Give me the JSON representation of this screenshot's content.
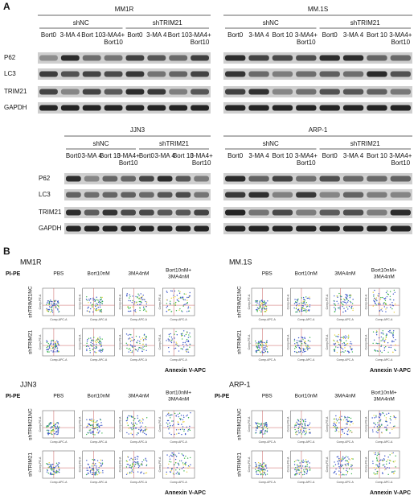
{
  "panel_a": {
    "label": "A",
    "blots": [
      {
        "title": "MM1R",
        "groups": [
          {
            "name": "shNC",
            "lanes": [
              [
                "Bort0"
              ],
              [
                "3-MA 4"
              ],
              [
                "Bort 10"
              ],
              [
                "3-MA4+",
                "Bort10"
              ]
            ]
          },
          {
            "name": "shTRIM21",
            "lanes": [
              [
                "Bort0"
              ],
              [
                "3-MA 4"
              ],
              [
                "Bort 10"
              ],
              [
                "3-MA4+",
                "Bort10"
              ]
            ]
          }
        ],
        "rows": [
          "P62",
          "LC3",
          "TRIM21",
          "GAPDH"
        ]
      },
      {
        "title": "MM.1S",
        "groups": [
          {
            "name": "shNC",
            "lanes": [
              [
                "Bort0"
              ],
              [
                "3-MA 4"
              ],
              [
                "Bort 10"
              ],
              [
                "3-MA4+",
                "Bort10"
              ]
            ]
          },
          {
            "name": "shTRIM21",
            "lanes": [
              [
                "Bort0"
              ],
              [
                "3-MA 4"
              ],
              [
                "Bort 10"
              ],
              [
                "3-MA4+",
                "Bort10"
              ]
            ]
          }
        ]
      },
      {
        "title": "JJN3",
        "groups": [
          {
            "name": "shNC",
            "lanes": [
              [
                "Bort0"
              ],
              [
                "3-MA 4"
              ],
              [
                "Bort 10"
              ],
              [
                "3-MA4+",
                "Bort10"
              ]
            ]
          },
          {
            "name": "shTRIM21",
            "lanes": [
              [
                "Bort0"
              ],
              [
                "3-MA 4"
              ],
              [
                "Bort 10"
              ],
              [
                "3-MA4+",
                "Bort10"
              ]
            ]
          }
        ],
        "rows": [
          "P62",
          "LC3",
          "TRIM21",
          "GAPDH"
        ]
      },
      {
        "title": "ARP-1",
        "groups": [
          {
            "name": "shNC",
            "lanes": [
              [
                "Bort0"
              ],
              [
                "3-MA 4"
              ],
              [
                "Bort 10"
              ],
              [
                "3-MA4+",
                "Bort10"
              ]
            ]
          },
          {
            "name": "shTRIM21",
            "lanes": [
              [
                "Bort0"
              ],
              [
                "3-MA 4"
              ],
              [
                "Bort 10"
              ],
              [
                "3-MA4+",
                "Bort10"
              ]
            ]
          }
        ]
      }
    ]
  },
  "panel_b": {
    "label": "B",
    "plot_y_axis": "Comp-PE-A",
    "plot_x_axis": "Comp-APC-A",
    "panels": [
      {
        "title": "MM1R",
        "y_label": "PI-PE",
        "columns": [
          [
            "PBS"
          ],
          [
            "Bort10nM"
          ],
          [
            "3MA4nM"
          ],
          [
            "Bort10nM+",
            "3MA4nM"
          ]
        ],
        "rows": [
          "shTRIM21NC",
          "shTRIM21"
        ],
        "x_label": "Annexin V-APC"
      },
      {
        "title": "MM.1S",
        "columns": [
          [
            "PBS"
          ],
          [
            "Bort10nM"
          ],
          [
            "3MA4nM"
          ],
          [
            "Bort10nM+",
            "3MA4nM"
          ]
        ],
        "rows": [
          "shTRIM21NC",
          "shTRIM21"
        ],
        "x_label": "Annexin V-APC"
      },
      {
        "title": "JJN3",
        "y_label": "PI-PE",
        "columns": [
          [
            "PBS"
          ],
          [
            "Bort10nM"
          ],
          [
            "3MA4nM"
          ],
          [
            "Bort10nM+",
            "3MA4nM"
          ]
        ],
        "rows": [
          "shTRIM21NC",
          "shTRIM21"
        ],
        "x_label": "Annexin V-APC"
      },
      {
        "title": "ARP-1",
        "y_label": "PI-PE",
        "columns": [
          [
            "PBS"
          ],
          [
            "Bort10nM"
          ],
          [
            "3MA4nM"
          ],
          [
            "Bort10nM+",
            "3MA4nM"
          ]
        ],
        "rows": [
          "shTRIM21NC",
          "shTRIM21"
        ],
        "x_label": "Annexin V-APC"
      }
    ]
  }
}
